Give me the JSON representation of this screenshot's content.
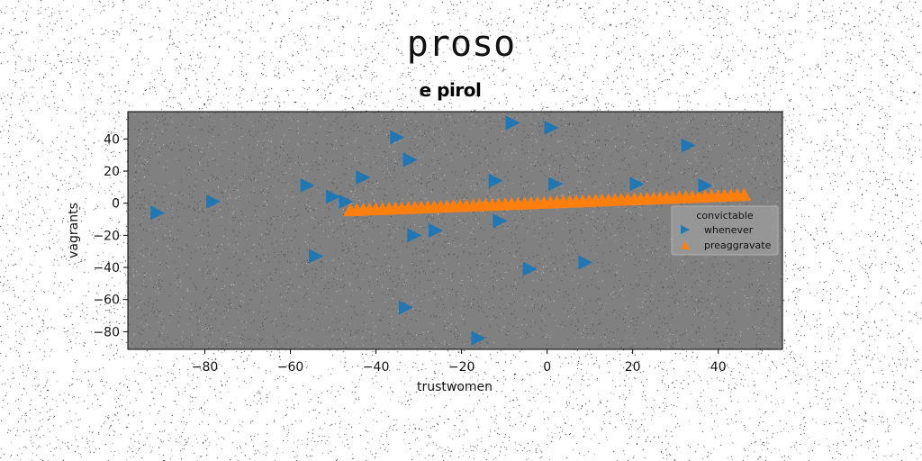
{
  "figure": {
    "suptitle": "proso",
    "title": "e pirol"
  },
  "chart_data": {
    "type": "scatter",
    "xlabel": "trustwomen",
    "ylabel": "vagrants",
    "xlim": [
      -98,
      55
    ],
    "ylim": [
      -91,
      57
    ],
    "xticks": [
      -80,
      -60,
      -40,
      -20,
      0,
      20,
      40
    ],
    "yticks": [
      40,
      20,
      0,
      -20,
      -40,
      -60,
      -80
    ],
    "xtick_labels": [
      "−80",
      "−60",
      "−40",
      "−20",
      "0",
      "20",
      "40"
    ],
    "ytick_labels": [
      "40",
      "20",
      "0",
      "−20",
      "−40",
      "−60",
      "−80"
    ],
    "background": "#808080",
    "grid": false,
    "legend": {
      "title": "convictable",
      "location": "center-right"
    },
    "series": [
      {
        "name": "whenever",
        "marker": "triangle-right",
        "color": "#1f77b4",
        "points": [
          [
            -91,
            -6
          ],
          [
            -78,
            1
          ],
          [
            -56,
            11
          ],
          [
            -54,
            -33
          ],
          [
            -50,
            4
          ],
          [
            -47,
            1
          ],
          [
            -43,
            16
          ],
          [
            -35,
            41
          ],
          [
            -33,
            -65
          ],
          [
            -32,
            27
          ],
          [
            -31,
            -20
          ],
          [
            -26,
            -17
          ],
          [
            -16,
            -84
          ],
          [
            -12,
            14
          ],
          [
            -11,
            -11
          ],
          [
            -8,
            50
          ],
          [
            -4,
            -41
          ],
          [
            1,
            47
          ],
          [
            2,
            12
          ],
          [
            9,
            -37
          ],
          [
            21,
            12
          ],
          [
            33,
            36
          ],
          [
            37,
            11
          ]
        ]
      },
      {
        "name": "preaggravate",
        "marker": "triangle-up",
        "color": "#ff7f0e",
        "line": {
          "x_start": -46,
          "x_end": 46,
          "y_start": -4.5,
          "y_end": 5,
          "count": 62
        }
      }
    ]
  }
}
